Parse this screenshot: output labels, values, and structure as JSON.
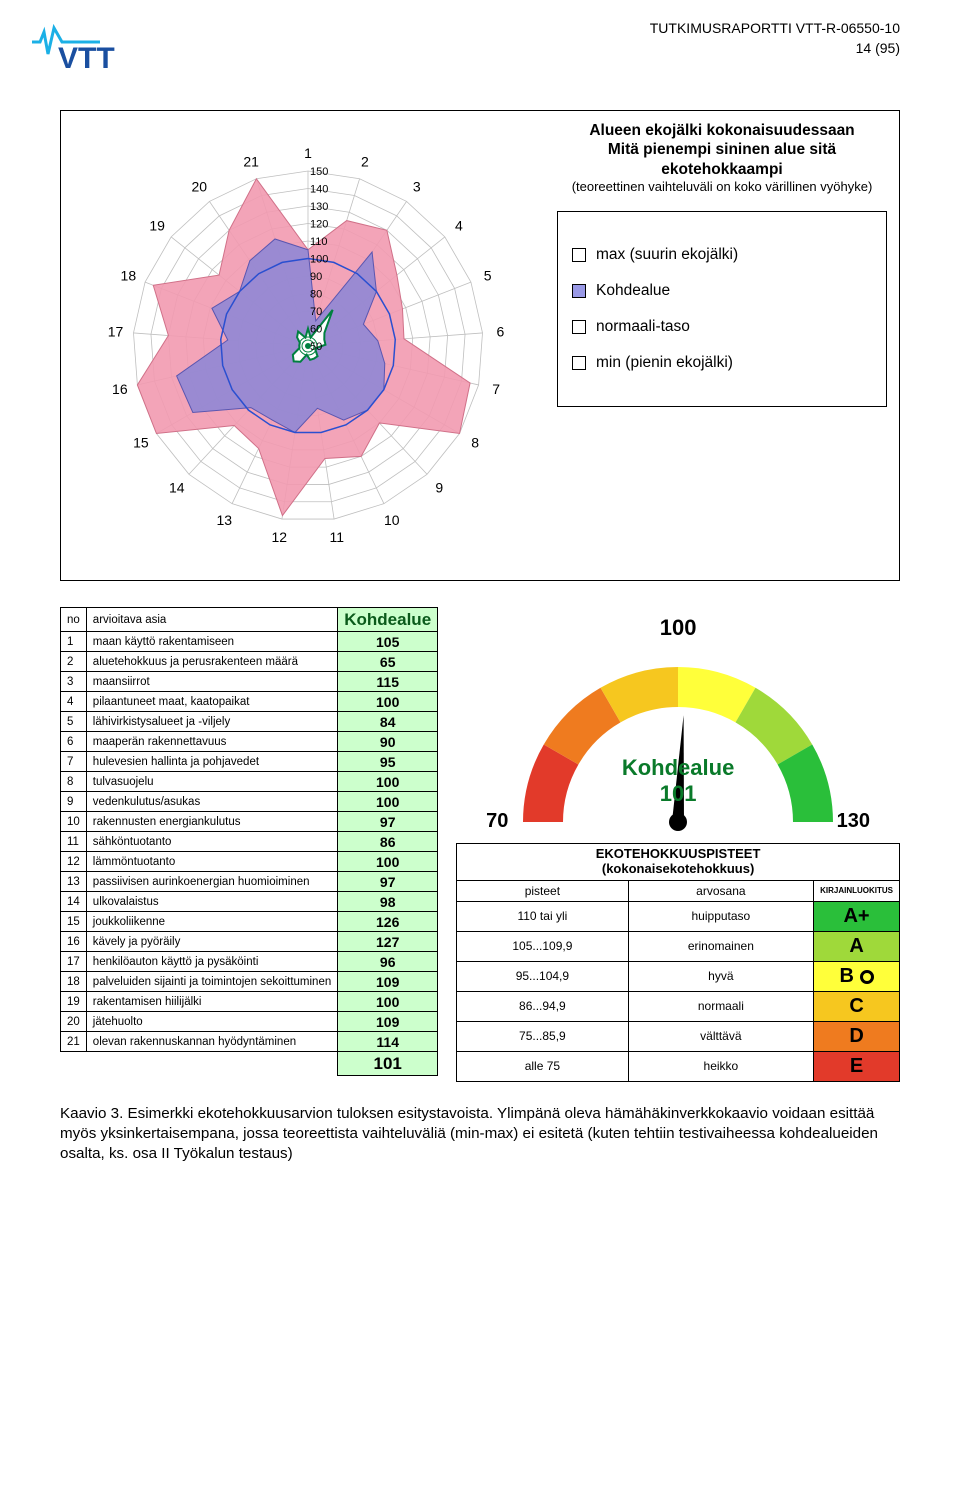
{
  "header": {
    "report_id": "TUTKIMUSRAPORTTI VTT-R-06550-10",
    "page_num": "14 (95)"
  },
  "logo": {
    "text": "VTT",
    "color": "#1a4fa0",
    "wave_color": "#1bb0e6"
  },
  "radar": {
    "title_line1": "Alueen ekojälki kokonaisuudessaan",
    "title_line2": "Mitä pienempi sininen alue sitä ekotehokkaampi",
    "subtitle": "(teoreettinen vaihteluväli on koko värillinen vyöhyke)",
    "ring_labels": [
      "150",
      "140",
      "130",
      "120",
      "110",
      "100",
      "90",
      "80",
      "70",
      "60",
      "50"
    ],
    "point_labels": [
      "1",
      "2",
      "3",
      "4",
      "5",
      "6",
      "7",
      "8",
      "9",
      "10",
      "11",
      "12",
      "13",
      "14",
      "15",
      "16",
      "17",
      "18",
      "19",
      "20",
      "21"
    ],
    "series": {
      "max": {
        "color": "#f29ab0",
        "values": [
          105,
          125,
          130,
          115,
          108,
          105,
          145,
          150,
          110,
          120,
          115,
          148,
          115,
          112,
          150,
          150,
          130,
          145,
          115,
          130,
          150
        ]
      },
      "kohdealue": {
        "color": "#8a86d6",
        "values": [
          105,
          65,
          115,
          100,
          84,
          90,
          95,
          100,
          100,
          97,
          86,
          100,
          97,
          98,
          126,
          127,
          96,
          109,
          100,
          109,
          114
        ]
      },
      "min": {
        "values": [
          60,
          55,
          75,
          62,
          60,
          60,
          55,
          55,
          58,
          58,
          58,
          55,
          60,
          62,
          60,
          55,
          55,
          55,
          58,
          60,
          55
        ]
      },
      "outline100": {
        "color": "#2a4fd0",
        "value": 100
      },
      "inner_white_border": "#008040"
    },
    "grid_color": "#bfbfbf",
    "background": "#ffffff",
    "legend": [
      {
        "label": "max (suurin ekojälki)",
        "fill": "#ffffff"
      },
      {
        "label": "Kohdealue",
        "fill": "#9999e6"
      },
      {
        "label": "normaali-taso",
        "fill": "#ffffff"
      },
      {
        "label": "min (pienin ekojälki)",
        "fill": "#ffffff"
      }
    ]
  },
  "table": {
    "head_no": "no",
    "head_asia": "arvioitava asia",
    "head_val": "Kohdealue",
    "rows": [
      {
        "n": "1",
        "label": "maan käyttö rakentamiseen",
        "val": "105"
      },
      {
        "n": "2",
        "label": "aluetehokkuus ja perusrakenteen määrä",
        "val": "65"
      },
      {
        "n": "3",
        "label": "maansiirrot",
        "val": "115"
      },
      {
        "n": "4",
        "label": "pilaantuneet maat, kaatopaikat",
        "val": "100"
      },
      {
        "n": "5",
        "label": "lähivirkistysalueet ja -viljely",
        "val": "84"
      },
      {
        "n": "6",
        "label": "maaperän rakennettavuus",
        "val": "90"
      },
      {
        "n": "7",
        "label": "hulevesien hallinta ja pohjavedet",
        "val": "95"
      },
      {
        "n": "8",
        "label": "tulvasuojelu",
        "val": "100"
      },
      {
        "n": "9",
        "label": "vedenkulutus/asukas",
        "val": "100"
      },
      {
        "n": "10",
        "label": "rakennusten energiankulutus",
        "val": "97"
      },
      {
        "n": "11",
        "label": "sähköntuotanto",
        "val": "86"
      },
      {
        "n": "12",
        "label": "lämmöntuotanto",
        "val": "100"
      },
      {
        "n": "13",
        "label": "passiivisen aurinkoenergian huomioiminen",
        "val": "97"
      },
      {
        "n": "14",
        "label": "ulkovalaistus",
        "val": "98"
      },
      {
        "n": "15",
        "label": "joukkoliikenne",
        "val": "126"
      },
      {
        "n": "16",
        "label": "kävely ja pyöräily",
        "val": "127"
      },
      {
        "n": "17",
        "label": "henkilöauton käyttö ja pysäköinti",
        "val": "96"
      },
      {
        "n": "18",
        "label": "palveluiden sijainti ja toimintojen sekoittuminen",
        "val": "109"
      },
      {
        "n": "19",
        "label": "rakentamisen hiilijälki",
        "val": "100"
      },
      {
        "n": "20",
        "label": "jätehuolto",
        "val": "109"
      },
      {
        "n": "21",
        "label": "olevan rakennuskannan hyödyntäminen",
        "val": "114"
      }
    ],
    "total": "101",
    "val_bg": "#ccffcc"
  },
  "gauge": {
    "top_label": "100",
    "left_label": "70",
    "right_label": "130",
    "center_name": "Kohdealue",
    "center_value": "101",
    "band_colors": [
      "#e23a2a",
      "#ef7b1f",
      "#f6c71f",
      "#ffff3a",
      "#9fd93a",
      "#2abf3a"
    ],
    "needle_angle_deg": 3,
    "title": "EKOTEHOKKUUSPISTEET",
    "subtitle": "(kokonaisekotehokkuus)",
    "columns": [
      "pisteet",
      "arvosana",
      "KIRJAINLUOKITUS"
    ],
    "rows": [
      {
        "range": "110 tai yli",
        "name": "huipputaso",
        "grade": "A+",
        "color": "#2abf3a"
      },
      {
        "range": "105...109,9",
        "name": "erinomainen",
        "grade": "A",
        "color": "#9fd93a"
      },
      {
        "range": "95...104,9",
        "name": "hyvä",
        "grade": "B",
        "color": "#ffff3a",
        "marker": true
      },
      {
        "range": "86...94,9",
        "name": "normaali",
        "grade": "C",
        "color": "#f6c71f"
      },
      {
        "range": "75...85,9",
        "name": "välttävä",
        "grade": "D",
        "color": "#ef7b1f"
      },
      {
        "range": "alle 75",
        "name": "heikko",
        "grade": "E",
        "color": "#e23a2a"
      }
    ]
  },
  "caption": "Kaavio 3. Esimerkki ekotehokkuusarvion tuloksen esitystavoista. Ylimpänä oleva hämähäkinverkkokaavio voidaan esittää myös yksinkertaisempana, jossa teoreettista vaihteluväliä (min-max) ei esitetä (kuten tehtiin testivaiheessa kohdealueiden osalta, ks. osa II Työkalun testaus)"
}
